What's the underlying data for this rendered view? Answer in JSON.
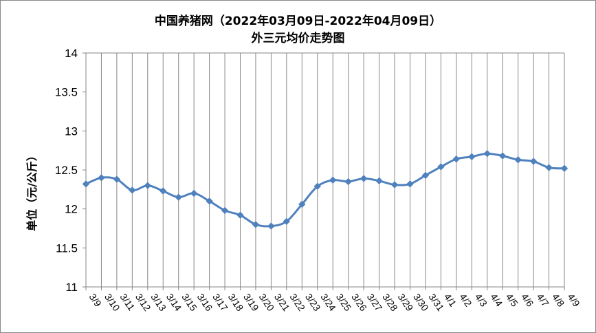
{
  "chart_data": {
    "type": "line",
    "title": "中国养猪网（2022年03月09日-2022年04月09日）",
    "subtitle": "外三元均价走势图",
    "xlabel": "",
    "ylabel": "单位（元/公斤）",
    "ylim": [
      11,
      14
    ],
    "yticks": [
      "11",
      "11.5",
      "12",
      "12.5",
      "13",
      "13.5",
      "14"
    ],
    "grid": "vertical",
    "legend": "none",
    "colors": {
      "series": "#4F81BD",
      "grid": "#868686",
      "axis": "#868686"
    },
    "categories": [
      "3/9",
      "3/10",
      "3/11",
      "3/12",
      "3/13",
      "3/14",
      "3/15",
      "3/16",
      "3/17",
      "3/18",
      "3/19",
      "3/20",
      "3/21",
      "3/22",
      "3/23",
      "3/24",
      "3/25",
      "3/26",
      "3/27",
      "3/28",
      "3/29",
      "3/30",
      "3/31",
      "4/1",
      "4/2",
      "4/3",
      "4/4",
      "4/5",
      "4/6",
      "4/7",
      "4/8",
      "4/9"
    ],
    "series": [
      {
        "values": [
          12.32,
          12.4,
          12.38,
          12.24,
          12.3,
          12.23,
          12.15,
          12.2,
          12.1,
          11.98,
          11.92,
          11.8,
          11.78,
          11.84,
          12.06,
          12.29,
          12.37,
          12.35,
          12.39,
          12.36,
          12.31,
          12.32,
          12.43,
          12.54,
          12.64,
          12.67,
          12.71,
          12.68,
          12.63,
          12.61,
          12.53,
          12.52
        ]
      }
    ]
  }
}
